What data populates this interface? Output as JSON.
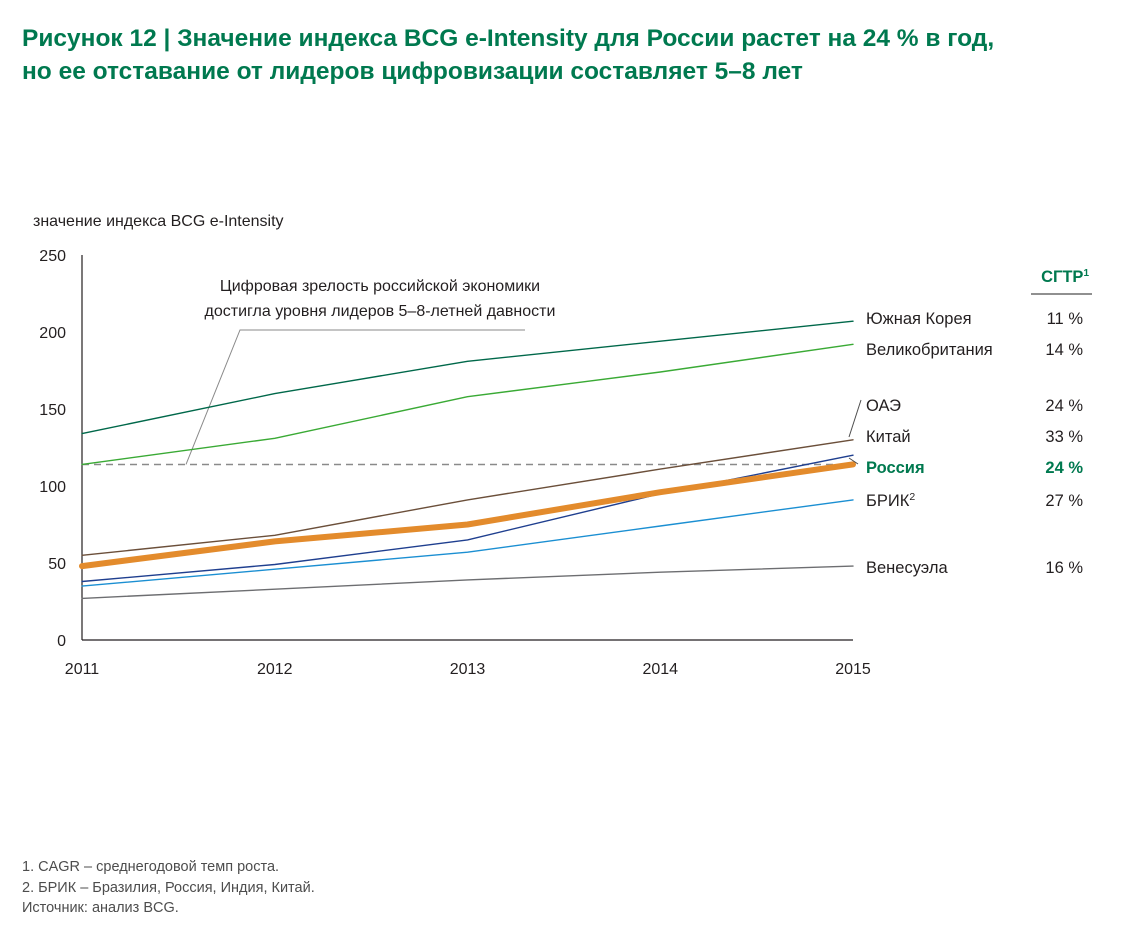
{
  "title": {
    "line1": "Рисунок 12 | Значение индекса BCG e-Intensity для России растет на 24 % в год,",
    "line2": "но ее отставание от лидеров цифровизации составляет 5–8 лет"
  },
  "chart_data": {
    "type": "line",
    "ylabel": "значение индекса BCG e-Intensity",
    "x": [
      "2011",
      "2012",
      "2013",
      "2014",
      "2015"
    ],
    "yticks": [
      "0",
      "50",
      "100",
      "150",
      "200",
      "250"
    ],
    "ylim": [
      0,
      250
    ],
    "grid": false,
    "cagr_header": "СГТР",
    "cagr_header_sup": "1",
    "series": [
      {
        "name": "Южная Корея",
        "values": [
          134,
          160,
          181,
          194,
          207
        ],
        "color": "#00684a",
        "width": 1.4,
        "cagr": "11 %"
      },
      {
        "name": "Великобритания",
        "values": [
          114,
          131,
          158,
          174,
          192
        ],
        "color": "#3aaa35",
        "width": 1.4,
        "cagr": "14 %"
      },
      {
        "name": "ОАЭ",
        "values": [
          55,
          68,
          91,
          111,
          130
        ],
        "color": "#6b4f3a",
        "width": 1.4,
        "cagr": "24 %"
      },
      {
        "name": "Китай",
        "values": [
          38,
          49,
          65,
          95,
          120
        ],
        "color": "#1f3f8f",
        "width": 1.4,
        "cagr": "33 %"
      },
      {
        "name": "Россия",
        "values": [
          48,
          64,
          75,
          96,
          114
        ],
        "color": "#e38b2c",
        "width": 6,
        "cagr": "24 %",
        "highlight": true
      },
      {
        "name": "БРИК",
        "name_sup": "2",
        "values": [
          35,
          46,
          57,
          74,
          91
        ],
        "color": "#1b8fd2",
        "width": 1.4,
        "cagr": "27 %"
      },
      {
        "name": "Венесуэла",
        "values": [
          27,
          33,
          39,
          44,
          48
        ],
        "color": "#6d6e71",
        "width": 1.4,
        "cagr": "16 %"
      }
    ],
    "reference_line": {
      "value": 114,
      "color": "#8a8a8a"
    },
    "annotation": {
      "line1": "Цифровая зрелость российской экономики",
      "line2": "достигла уровня лидеров 5–8-летней давности"
    }
  },
  "footnotes": [
    "1. CAGR – среднегодовой темп роста.",
    "2. БРИК – Бразилия, Россия, Индия, Китай.",
    "Источник: анализ BCG."
  ],
  "colors": {
    "title": "#00794f",
    "highlight_text": "#00794f"
  }
}
